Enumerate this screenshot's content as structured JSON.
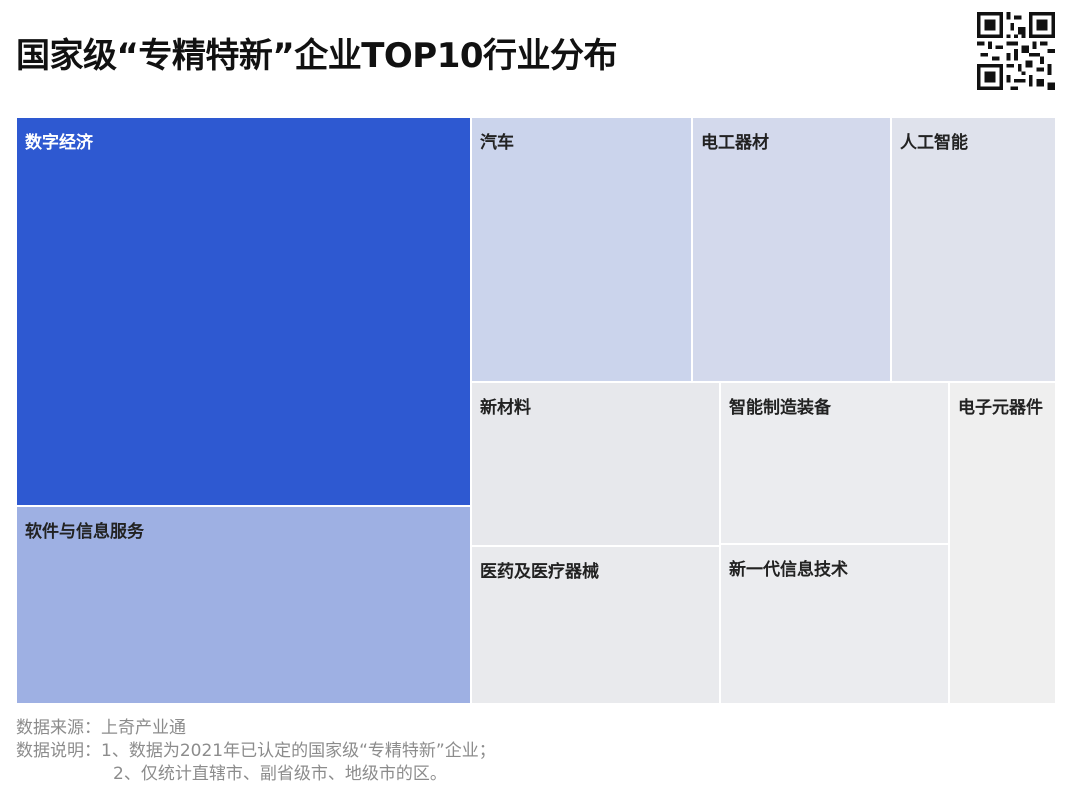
{
  "title": "国家级“专精特新”企业TOP10行业分布",
  "chart_data": {
    "type": "treemap",
    "title": "国家级“专精特新”企业TOP10行业分布",
    "categories": [
      "数字经济",
      "软件与信息服务",
      "汽车",
      "电工器材",
      "人工智能",
      "新材料",
      "医药及医疗器械",
      "智能制造装备",
      "新一代信息技术",
      "电子元器件"
    ],
    "colors": {
      "数字经济": "#2e59d1",
      "软件与信息服务": "#9eb0e3",
      "汽车": "#cbd4ec",
      "电工器材": "#d3d9ec",
      "人工智能": "#dfe2ec",
      "新材料": "#e7e8ec",
      "医药及医疗器械": "#e9eaed",
      "智能制造装备": "#ebecef",
      "新一代信息技术": "#ebecef",
      "电子元器件": "#efefef"
    }
  },
  "notes": {
    "source": "数据来源：上奇产业通",
    "desc1": "数据说明：1、数据为2021年已认定的国家级“专精特新”企业；",
    "desc2": "2、仅统计直辖市、副省级市、地级市的区。"
  }
}
